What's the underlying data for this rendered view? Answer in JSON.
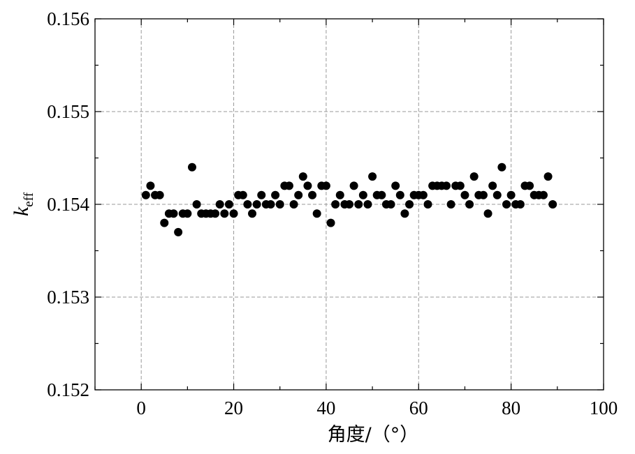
{
  "chart_data": {
    "type": "scatter",
    "title": "",
    "xlabel": "角度/（°）",
    "ylabel": {
      "main": "k",
      "sub": "eff"
    },
    "xlim": [
      -10,
      100
    ],
    "ylim": [
      0.152,
      0.156
    ],
    "xticks": [
      0,
      20,
      40,
      60,
      80,
      100
    ],
    "yticks": [
      0.152,
      0.153,
      0.154,
      0.155,
      0.156
    ],
    "xtick_labels": [
      "0",
      "20",
      "40",
      "60",
      "80",
      "100"
    ],
    "ytick_labels": [
      "0.152",
      "0.153",
      "0.154",
      "0.155",
      "0.156"
    ],
    "grid": true,
    "marker_color": "#000000",
    "grid_color": "#999999",
    "series": [
      {
        "x": [
          1,
          2,
          3,
          4,
          5,
          6,
          7,
          8,
          9,
          10,
          11,
          12,
          13,
          14,
          15,
          16,
          17,
          18,
          19,
          20,
          21,
          22,
          23,
          24,
          25,
          26,
          27,
          28,
          29,
          30,
          31,
          32,
          33,
          34,
          35,
          36,
          37,
          38,
          39,
          40,
          41,
          42,
          43,
          44,
          45,
          46,
          47,
          48,
          49,
          50,
          51,
          52,
          53,
          54,
          55,
          56,
          57,
          58,
          59,
          60,
          61,
          62,
          63,
          64,
          65,
          66,
          67,
          68,
          69,
          70,
          71,
          72,
          73,
          74,
          75,
          76,
          77,
          78,
          79,
          80,
          81,
          82,
          83,
          84,
          85,
          86,
          87,
          88,
          89
        ],
        "y": [
          0.1541,
          0.1542,
          0.1541,
          0.1541,
          0.1538,
          0.1539,
          0.1539,
          0.1537,
          0.1539,
          0.1539,
          0.1544,
          0.154,
          0.1539,
          0.1539,
          0.1539,
          0.1539,
          0.154,
          0.1539,
          0.154,
          0.1539,
          0.1541,
          0.1541,
          0.154,
          0.1539,
          0.154,
          0.1541,
          0.154,
          0.154,
          0.1541,
          0.154,
          0.1542,
          0.1542,
          0.154,
          0.1541,
          0.1543,
          0.1542,
          0.1541,
          0.1539,
          0.1542,
          0.1542,
          0.1538,
          0.154,
          0.1541,
          0.154,
          0.154,
          0.1542,
          0.154,
          0.1541,
          0.154,
          0.1543,
          0.1541,
          0.1541,
          0.154,
          0.154,
          0.1542,
          0.1541,
          0.1539,
          0.154,
          0.1541,
          0.1541,
          0.1541,
          0.154,
          0.1542,
          0.1542,
          0.1542,
          0.1542,
          0.154,
          0.1542,
          0.1542,
          0.1541,
          0.154,
          0.1543,
          0.1541,
          0.1541,
          0.1539,
          0.1542,
          0.1541,
          0.1544,
          0.154,
          0.1541,
          0.154,
          0.154,
          0.1542,
          0.1542,
          0.1541,
          0.1541,
          0.1541,
          0.1543,
          0.154
        ]
      }
    ]
  }
}
